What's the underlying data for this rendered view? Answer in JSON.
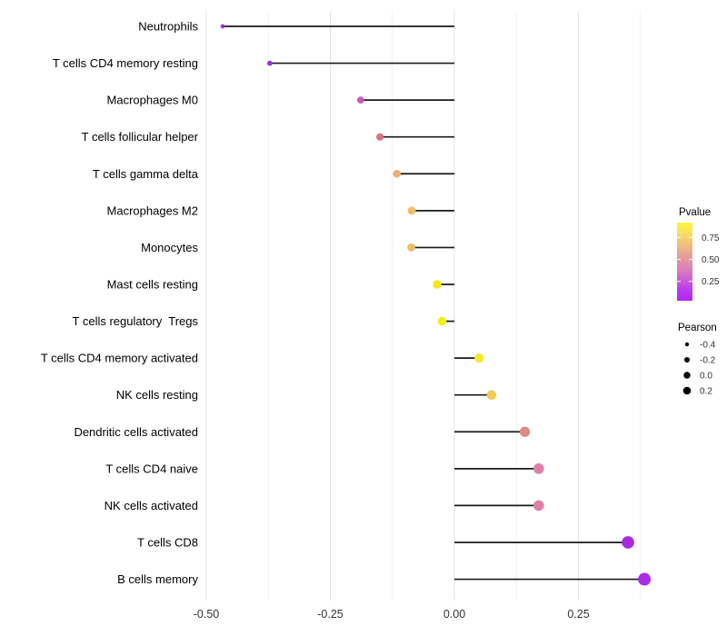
{
  "figure": {
    "background": "#ffffff",
    "text_color": "#000000",
    "axis_text_color": "#333333",
    "grid_major_color": "#e4e4e4",
    "grid_minor_color": "#f1f1f1",
    "stem_color": "#1a1a1a"
  },
  "chart_data": {
    "type": "scatter",
    "variant": "lollipop",
    "orientation": "horizontal",
    "title": "",
    "xlabel": "",
    "ylabel": "",
    "grid": true,
    "xlim": [
      -0.55,
      0.41
    ],
    "x_ticks": {
      "values": [
        -0.5,
        -0.25,
        0.0,
        0.25
      ],
      "labels": [
        "-0.50",
        "-0.25",
        "0.00",
        "0.25"
      ]
    },
    "x_minor_ticks": [
      -0.375,
      -0.125,
      0.125,
      0.375
    ],
    "points": [
      {
        "category": "Neutrophils",
        "pearson": -0.467,
        "pvalue": 0.05,
        "color": "#9b2fd9"
      },
      {
        "category": "T cells CD4 memory resting",
        "pearson": -0.372,
        "pvalue": 0.07,
        "color": "#a32ce1"
      },
      {
        "category": "Macrophages M0",
        "pearson": -0.189,
        "pvalue": 0.3,
        "color": "#c75bbb"
      },
      {
        "category": "T cells follicular helper",
        "pearson": -0.15,
        "pvalue": 0.45,
        "color": "#db7183"
      },
      {
        "category": "T cells gamma delta",
        "pearson": -0.116,
        "pvalue": 0.6,
        "color": "#efae72"
      },
      {
        "category": "Macrophages M2",
        "pearson": -0.086,
        "pvalue": 0.62,
        "color": "#f0be68"
      },
      {
        "category": "Monocytes",
        "pearson": -0.087,
        "pvalue": 0.62,
        "color": "#f0be68"
      },
      {
        "category": "Mast cells resting",
        "pearson": -0.035,
        "pvalue": 0.85,
        "color": "#f6e814"
      },
      {
        "category": "T cells regulatory  Tregs",
        "pearson": -0.025,
        "pvalue": 0.9,
        "color": "#f7ee16"
      },
      {
        "category": "T cells CD4 memory activated",
        "pearson": 0.05,
        "pvalue": 0.8,
        "color": "#f6e732"
      },
      {
        "category": "NK cells resting",
        "pearson": 0.075,
        "pvalue": 0.72,
        "color": "#f2cb57"
      },
      {
        "category": "Dendritic cells activated",
        "pearson": 0.142,
        "pvalue": 0.5,
        "color": "#dd8b80"
      },
      {
        "category": "T cells CD4 naive",
        "pearson": 0.17,
        "pvalue": 0.42,
        "color": "#da82a6"
      },
      {
        "category": "NK cells activated",
        "pearson": 0.17,
        "pvalue": 0.42,
        "color": "#da82a6"
      },
      {
        "category": "T cells CD8",
        "pearson": 0.35,
        "pvalue": 0.05,
        "color": "#a82be0"
      },
      {
        "category": "B cells memory",
        "pearson": 0.383,
        "pvalue": 0.03,
        "color": "#aa2be8"
      }
    ],
    "legend": {
      "position": "right",
      "pvalue": {
        "title": "Pvalue",
        "tick_labels": [
          "0.75",
          "0.50",
          "0.25"
        ],
        "tick_values": [
          0.75,
          0.5,
          0.25
        ],
        "range": [
          0.92,
          0.03
        ],
        "gradient_stops": [
          "#fdf440",
          "#f8dd63",
          "#f0bd7e",
          "#e59e97",
          "#dc84b4",
          "#cc63d2",
          "#b93cec",
          "#b226f4"
        ]
      },
      "pearson": {
        "title": "Pearson",
        "labels": [
          "-0.4",
          "-0.2",
          "0.0",
          "0.2"
        ],
        "values": [
          -0.4,
          -0.2,
          0.0,
          0.2
        ],
        "dot_color": "#000000"
      }
    }
  }
}
